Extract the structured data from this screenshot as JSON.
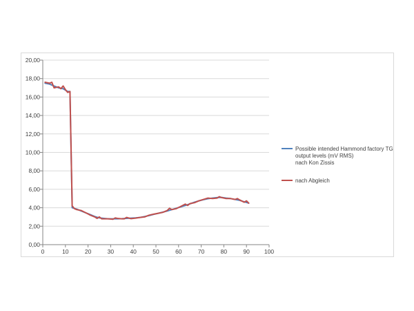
{
  "chart_data": {
    "type": "line",
    "title": "",
    "xlabel": "",
    "ylabel": "",
    "xlim": [
      0,
      100
    ],
    "ylim": [
      0,
      20
    ],
    "x_ticks": [
      0,
      10,
      20,
      30,
      40,
      50,
      60,
      70,
      80,
      90,
      100
    ],
    "y_ticks": [
      "0,00",
      "2,00",
      "4,00",
      "6,00",
      "8,00",
      "10,00",
      "12,00",
      "14,00",
      "16,00",
      "18,00",
      "20,00"
    ],
    "grid": "horizontal",
    "legend_position": "right",
    "series": [
      {
        "name": "Possible intended Hammond factory TG output levels (mV RMS) nach Kon Zissis",
        "legend_lines": [
          "Possible intended Hammond factory TG",
          "output levels (mV RMS)",
          "nach Kon Zissis"
        ],
        "color": "#4f81bd",
        "x": [
          1,
          3,
          5,
          7,
          9,
          11,
          12,
          13,
          15,
          17,
          19,
          21,
          23,
          25,
          27,
          29,
          31,
          33,
          35,
          37,
          39,
          41,
          43,
          45,
          47,
          49,
          51,
          53,
          55,
          57,
          59,
          61,
          63,
          65,
          67,
          69,
          71,
          73,
          75,
          77,
          79,
          81,
          83,
          85,
          87,
          89,
          91
        ],
        "y": [
          17.5,
          17.4,
          17.2,
          17.0,
          16.9,
          16.6,
          16.6,
          4.0,
          3.85,
          3.65,
          3.45,
          3.25,
          3.05,
          2.9,
          2.85,
          2.8,
          2.8,
          2.8,
          2.82,
          2.85,
          2.88,
          2.9,
          2.95,
          3.05,
          3.15,
          3.28,
          3.4,
          3.52,
          3.65,
          3.8,
          3.95,
          4.1,
          4.25,
          4.42,
          4.6,
          4.75,
          4.88,
          4.98,
          5.05,
          5.1,
          5.12,
          5.05,
          5.0,
          4.9,
          4.8,
          4.65,
          4.5
        ]
      },
      {
        "name": "nach Abgleich",
        "legend_lines": [
          "nach Abgleich"
        ],
        "color": "#c0504d",
        "x": [
          1,
          3,
          4,
          5,
          7,
          8,
          9,
          10,
          11,
          12,
          13,
          14,
          15,
          17,
          19,
          21,
          23,
          24,
          25,
          26,
          27,
          29,
          31,
          32,
          33,
          35,
          36,
          37,
          39,
          41,
          43,
          45,
          46,
          47,
          49,
          51,
          53,
          55,
          56,
          57,
          59,
          61,
          63,
          64,
          65,
          67,
          69,
          71,
          73,
          75,
          77,
          78,
          79,
          81,
          83,
          85,
          86,
          87,
          89,
          90,
          91
        ],
        "y": [
          17.6,
          17.5,
          17.6,
          17.0,
          17.1,
          16.9,
          17.2,
          16.8,
          16.5,
          16.6,
          4.2,
          3.9,
          3.8,
          3.7,
          3.45,
          3.2,
          3.0,
          2.85,
          3.0,
          2.8,
          2.8,
          2.8,
          2.75,
          2.9,
          2.85,
          2.8,
          2.8,
          2.95,
          2.82,
          2.88,
          2.95,
          3.0,
          3.1,
          3.2,
          3.3,
          3.4,
          3.5,
          3.7,
          3.95,
          3.8,
          3.9,
          4.15,
          4.4,
          4.25,
          4.45,
          4.55,
          4.75,
          4.9,
          5.05,
          5.0,
          5.05,
          5.2,
          5.1,
          5.0,
          5.0,
          4.9,
          5.0,
          4.85,
          4.6,
          4.75,
          4.5
        ]
      }
    ]
  }
}
